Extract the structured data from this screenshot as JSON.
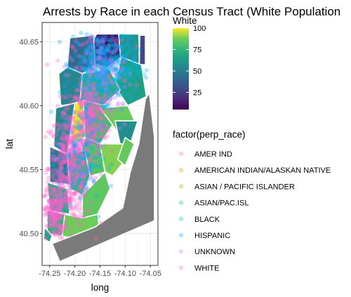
{
  "chart_data": {
    "type": "scatter",
    "title": "Arrests by Race in each Census Tract (White Population",
    "xlabel": "long",
    "ylabel": "lat",
    "xlim": [
      -74.265,
      -74.035
    ],
    "ylim": [
      40.475,
      40.665
    ],
    "x_ticks": [
      -74.25,
      -74.2,
      -74.15,
      -74.1,
      -74.05
    ],
    "x_tick_labels": [
      "-74.25",
      "-74.20",
      "-74.15",
      "-74.10",
      "-74.05"
    ],
    "y_ticks": [
      40.5,
      40.55,
      40.6,
      40.65
    ],
    "y_tick_labels": [
      "40.50",
      "40.55",
      "40.60",
      "40.65"
    ],
    "grid": true,
    "fill_scale": {
      "title": "White",
      "palette": "viridis",
      "min": 5,
      "max": 100,
      "breaks": [
        25,
        50,
        75,
        100
      ],
      "break_labels": [
        "25",
        "50",
        "75",
        "100"
      ]
    },
    "color_legend": {
      "title": "factor(perp_race)",
      "entries": [
        {
          "name": "AMER IND",
          "color": "#F8766D"
        },
        {
          "name": "AMERICAN INDIAN/ALASKAN NATIVE",
          "color": "#CD9600"
        },
        {
          "name": "ASIAN / PACIFIC ISLANDER",
          "color": "#7CAE00"
        },
        {
          "name": "ASIAN/PAC.ISL",
          "color": "#00BE67"
        },
        {
          "name": "BLACK",
          "color": "#00BFC4"
        },
        {
          "name": "HISPANIC",
          "color": "#00A9FF"
        },
        {
          "name": "UNKNOWN",
          "color": "#C77CFF"
        },
        {
          "name": "WHITE",
          "color": "#FF61CC"
        }
      ]
    },
    "tracts": [
      {
        "white": 8,
        "points": [
          [
            -74.157,
            40.656
          ],
          [
            -74.113,
            40.656
          ],
          [
            -74.108,
            40.638
          ],
          [
            -74.135,
            40.63
          ],
          [
            -74.16,
            40.632
          ],
          [
            -74.17,
            40.645
          ]
        ]
      },
      {
        "white": 28,
        "points": [
          [
            -74.071,
            40.655
          ],
          [
            -74.06,
            40.655
          ],
          [
            -74.06,
            40.632
          ],
          [
            -74.072,
            40.632
          ]
        ]
      },
      {
        "white": 42,
        "points": [
          [
            -74.21,
            40.653
          ],
          [
            -74.163,
            40.655
          ],
          [
            -74.16,
            40.632
          ],
          [
            -74.185,
            40.625
          ],
          [
            -74.215,
            40.63
          ]
        ]
      },
      {
        "white": 60,
        "points": [
          [
            -74.113,
            40.656
          ],
          [
            -74.073,
            40.656
          ],
          [
            -74.072,
            40.632
          ],
          [
            -74.108,
            40.632
          ]
        ]
      },
      {
        "white": 65,
        "points": [
          [
            -74.108,
            40.638
          ],
          [
            -74.068,
            40.632
          ],
          [
            -74.058,
            40.607
          ],
          [
            -74.095,
            40.6
          ],
          [
            -74.12,
            40.615
          ]
        ]
      },
      {
        "white": 54,
        "points": [
          [
            -74.232,
            40.625
          ],
          [
            -74.215,
            40.63
          ],
          [
            -74.185,
            40.625
          ],
          [
            -74.19,
            40.602
          ],
          [
            -74.228,
            40.6
          ]
        ]
      },
      {
        "white": 72,
        "points": [
          [
            -74.185,
            40.625
          ],
          [
            -74.13,
            40.628
          ],
          [
            -74.11,
            40.612
          ],
          [
            -74.15,
            40.598
          ],
          [
            -74.19,
            40.602
          ]
        ]
      },
      {
        "white": 55,
        "points": [
          [
            -74.238,
            40.598
          ],
          [
            -74.2,
            40.602
          ],
          [
            -74.215,
            40.562
          ],
          [
            -74.242,
            40.568
          ]
        ]
      },
      {
        "white": 100,
        "points": [
          [
            -74.2,
            40.602
          ],
          [
            -74.183,
            40.604
          ],
          [
            -74.18,
            40.575
          ],
          [
            -74.208,
            40.57
          ]
        ]
      },
      {
        "white": 80,
        "points": [
          [
            -74.183,
            40.604
          ],
          [
            -74.14,
            40.6
          ],
          [
            -74.125,
            40.585
          ],
          [
            -74.15,
            40.57
          ],
          [
            -74.18,
            40.575
          ]
        ]
      },
      {
        "white": 87,
        "points": [
          [
            -74.15,
            40.598
          ],
          [
            -74.095,
            40.6
          ],
          [
            -74.078,
            40.585
          ],
          [
            -74.1,
            40.57
          ],
          [
            -74.125,
            40.585
          ]
        ]
      },
      {
        "white": 58,
        "points": [
          [
            -74.12,
            40.588
          ],
          [
            -74.075,
            40.588
          ],
          [
            -74.09,
            40.57
          ],
          [
            -74.11,
            40.57
          ]
        ]
      },
      {
        "white": 82,
        "points": [
          [
            -74.18,
            40.575
          ],
          [
            -74.15,
            40.57
          ],
          [
            -74.14,
            40.548
          ],
          [
            -74.17,
            40.545
          ],
          [
            -74.19,
            40.56
          ]
        ]
      },
      {
        "white": 90,
        "points": [
          [
            -74.15,
            40.57
          ],
          [
            -74.1,
            40.57
          ],
          [
            -74.095,
            40.56
          ],
          [
            -74.125,
            40.545
          ],
          [
            -74.14,
            40.548
          ]
        ]
      },
      {
        "white": 86,
        "points": [
          [
            -74.1,
            40.575
          ],
          [
            -74.082,
            40.57
          ],
          [
            -74.1,
            40.553
          ],
          [
            -74.115,
            40.558
          ]
        ]
      },
      {
        "white": 48,
        "points": [
          [
            -74.25,
            40.568
          ],
          [
            -74.215,
            40.562
          ],
          [
            -74.205,
            40.538
          ],
          [
            -74.25,
            40.54
          ]
        ]
      },
      {
        "white": 76,
        "points": [
          [
            -74.215,
            40.562
          ],
          [
            -74.18,
            40.565
          ],
          [
            -74.17,
            40.545
          ],
          [
            -74.185,
            40.53
          ],
          [
            -74.21,
            40.535
          ]
        ]
      },
      {
        "white": 85,
        "points": [
          [
            -74.185,
            40.53
          ],
          [
            -74.14,
            40.548
          ],
          [
            -74.13,
            40.535
          ],
          [
            -74.155,
            40.515
          ],
          [
            -74.185,
            40.512
          ]
        ]
      },
      {
        "white": 70,
        "points": [
          [
            -74.255,
            40.54
          ],
          [
            -74.215,
            40.535
          ],
          [
            -74.21,
            40.515
          ],
          [
            -74.25,
            40.518
          ]
        ]
      },
      {
        "white": 74,
        "points": [
          [
            -74.255,
            40.518
          ],
          [
            -74.22,
            40.515
          ],
          [
            -74.225,
            40.498
          ],
          [
            -74.255,
            40.5
          ]
        ]
      },
      {
        "white": 88,
        "points": [
          [
            -74.22,
            40.515
          ],
          [
            -74.185,
            40.512
          ],
          [
            -74.155,
            40.515
          ],
          [
            -74.15,
            40.5
          ],
          [
            -74.19,
            40.495
          ],
          [
            -74.225,
            40.498
          ]
        ]
      },
      {
        "white": 66,
        "points": [
          [
            -74.26,
            40.505
          ],
          [
            -74.245,
            40.498
          ],
          [
            -74.25,
            40.493
          ],
          [
            -74.262,
            40.496
          ]
        ]
      }
    ],
    "missing_tract": {
      "white": null,
      "points": [
        [
          -74.245,
          40.492
        ],
        [
          -74.16,
          40.505
        ],
        [
          -74.105,
          40.52
        ],
        [
          -74.09,
          40.548
        ],
        [
          -74.073,
          40.57
        ],
        [
          -74.06,
          40.605
        ],
        [
          -74.052,
          40.61
        ],
        [
          -74.042,
          40.575
        ],
        [
          -74.042,
          40.51
        ],
        [
          -74.23,
          40.478
        ]
      ]
    },
    "clusters": [
      {
        "race": "WHITE",
        "count": 520,
        "center": [
          -74.208,
          40.552
        ],
        "spread": [
          0.022,
          0.022
        ]
      },
      {
        "race": "WHITE",
        "count": 260,
        "center": [
          -74.17,
          40.59
        ],
        "spread": [
          0.018,
          0.015
        ]
      },
      {
        "race": "WHITE",
        "count": 160,
        "center": [
          -74.24,
          40.515
        ],
        "spread": [
          0.01,
          0.01
        ]
      },
      {
        "race": "WHITE",
        "count": 180,
        "center": [
          -74.15,
          40.63
        ],
        "spread": [
          0.028,
          0.013
        ]
      },
      {
        "race": "HISPANIC",
        "count": 360,
        "center": [
          -74.14,
          40.632
        ],
        "spread": [
          0.03,
          0.014
        ]
      },
      {
        "race": "HISPANIC",
        "count": 130,
        "center": [
          -74.19,
          40.56
        ],
        "spread": [
          0.022,
          0.022
        ]
      },
      {
        "race": "BLACK",
        "count": 90,
        "center": [
          -74.13,
          40.63
        ],
        "spread": [
          0.03,
          0.013
        ]
      },
      {
        "race": "UNKNOWN",
        "count": 60,
        "center": [
          -74.15,
          40.62
        ],
        "spread": [
          0.035,
          0.02
        ]
      }
    ]
  }
}
